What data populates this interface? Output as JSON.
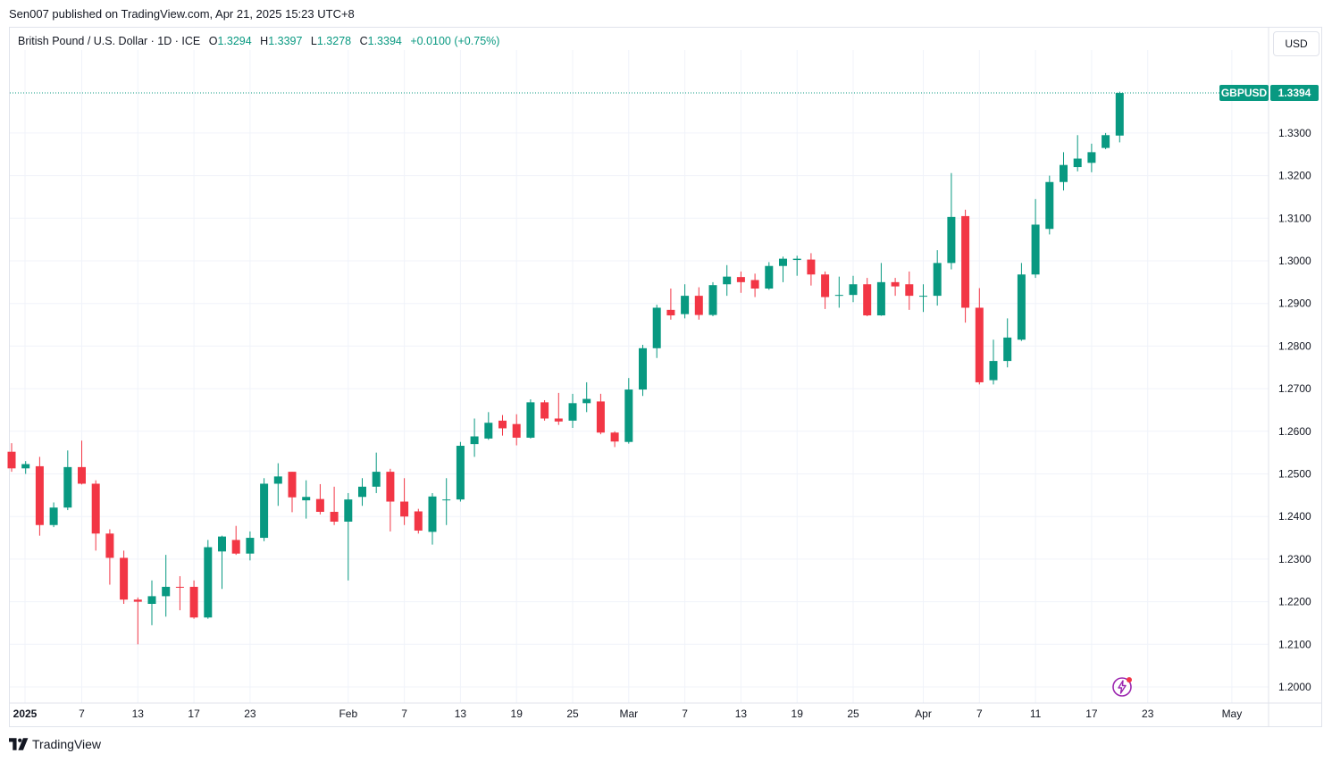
{
  "header": {
    "publisher_line": "Sen007 published on TradingView.com, Apr 21, 2025 15:23 UTC+8"
  },
  "legend": {
    "symbol": "British Pound / U.S. Dollar · 1D · ICE",
    "open_label": "O",
    "open_value": "1.3294",
    "high_label": "H",
    "high_value": "1.3397",
    "low_label": "L",
    "low_value": "1.3278",
    "close_label": "C",
    "close_value": "1.3394",
    "change": "+0.0100 (+0.75%)"
  },
  "currency_button": "USD",
  "footer": {
    "brand": "TradingView"
  },
  "colors": {
    "up": "#089981",
    "down": "#f23645",
    "grid": "#f0f3fa",
    "text": "#131722"
  },
  "chart_data": {
    "type": "candlestick",
    "ylim": [
      1.195,
      1.3445
    ],
    "y_ticks": [
      "1.2000",
      "1.2100",
      "1.2200",
      "1.2300",
      "1.2400",
      "1.2500",
      "1.2600",
      "1.2700",
      "1.2800",
      "1.2900",
      "1.3000",
      "1.3100",
      "1.3200",
      "1.3300"
    ],
    "x_ticks": [
      {
        "label": "2025",
        "date": "2025-01-01",
        "bold": true
      },
      {
        "label": "7",
        "date": "2025-01-07"
      },
      {
        "label": "13",
        "date": "2025-01-13"
      },
      {
        "label": "17",
        "date": "2025-01-17"
      },
      {
        "label": "23",
        "date": "2025-01-23"
      },
      {
        "label": "Feb",
        "date": "2025-02-01"
      },
      {
        "label": "7",
        "date": "2025-02-07"
      },
      {
        "label": "13",
        "date": "2025-02-13"
      },
      {
        "label": "19",
        "date": "2025-02-19"
      },
      {
        "label": "25",
        "date": "2025-02-25"
      },
      {
        "label": "Mar",
        "date": "2025-03-01"
      },
      {
        "label": "7",
        "date": "2025-03-07"
      },
      {
        "label": "13",
        "date": "2025-03-13"
      },
      {
        "label": "19",
        "date": "2025-03-19"
      },
      {
        "label": "25",
        "date": "2025-03-25"
      },
      {
        "label": "Apr",
        "date": "2025-04-01"
      },
      {
        "label": "7",
        "date": "2025-04-07"
      },
      {
        "label": "11",
        "date": "2025-04-11"
      },
      {
        "label": "17",
        "date": "2025-04-17"
      },
      {
        "label": "23",
        "date": "2025-04-23"
      },
      {
        "label": "May",
        "date": "2025-05-01"
      }
    ],
    "last_price_tag": {
      "symbol": "GBPUSD",
      "value": "1.3394",
      "price": 1.3394
    },
    "candles": [
      {
        "date": "2024-12-31",
        "o": 1.2552,
        "h": 1.2572,
        "l": 1.2505,
        "c": 1.2513
      },
      {
        "date": "2025-01-01",
        "o": 1.2513,
        "h": 1.253,
        "l": 1.25,
        "c": 1.2523
      },
      {
        "date": "2025-01-02",
        "o": 1.2518,
        "h": 1.254,
        "l": 1.2355,
        "c": 1.238
      },
      {
        "date": "2025-01-03",
        "o": 1.238,
        "h": 1.2433,
        "l": 1.2375,
        "c": 1.2421
      },
      {
        "date": "2025-01-06",
        "o": 1.2421,
        "h": 1.2555,
        "l": 1.2415,
        "c": 1.2516
      },
      {
        "date": "2025-01-07",
        "o": 1.2516,
        "h": 1.2578,
        "l": 1.2475,
        "c": 1.2477
      },
      {
        "date": "2025-01-08",
        "o": 1.2477,
        "h": 1.2485,
        "l": 1.232,
        "c": 1.236
      },
      {
        "date": "2025-01-09",
        "o": 1.236,
        "h": 1.237,
        "l": 1.224,
        "c": 1.2303
      },
      {
        "date": "2025-01-10",
        "o": 1.2303,
        "h": 1.232,
        "l": 1.2195,
        "c": 1.2205
      },
      {
        "date": "2025-01-13",
        "o": 1.2205,
        "h": 1.221,
        "l": 1.21,
        "c": 1.22
      },
      {
        "date": "2025-01-14",
        "o": 1.2195,
        "h": 1.225,
        "l": 1.2145,
        "c": 1.2213
      },
      {
        "date": "2025-01-15",
        "o": 1.2213,
        "h": 1.231,
        "l": 1.2165,
        "c": 1.2235
      },
      {
        "date": "2025-01-16",
        "o": 1.2235,
        "h": 1.226,
        "l": 1.218,
        "c": 1.2233
      },
      {
        "date": "2025-01-17",
        "o": 1.2235,
        "h": 1.225,
        "l": 1.216,
        "c": 1.2163
      },
      {
        "date": "2025-01-20",
        "o": 1.2163,
        "h": 1.2345,
        "l": 1.216,
        "c": 1.2328
      },
      {
        "date": "2025-01-21",
        "o": 1.2318,
        "h": 1.2355,
        "l": 1.223,
        "c": 1.2353
      },
      {
        "date": "2025-01-22",
        "o": 1.2345,
        "h": 1.2378,
        "l": 1.231,
        "c": 1.2313
      },
      {
        "date": "2025-01-23",
        "o": 1.2313,
        "h": 1.2365,
        "l": 1.2297,
        "c": 1.235
      },
      {
        "date": "2025-01-24",
        "o": 1.235,
        "h": 1.249,
        "l": 1.2342,
        "c": 1.2477
      },
      {
        "date": "2025-01-27",
        "o": 1.2477,
        "h": 1.2525,
        "l": 1.2425,
        "c": 1.2494
      },
      {
        "date": "2025-01-28",
        "o": 1.2505,
        "h": 1.2505,
        "l": 1.241,
        "c": 1.2445
      },
      {
        "date": "2025-01-29",
        "o": 1.2438,
        "h": 1.2485,
        "l": 1.2395,
        "c": 1.2446
      },
      {
        "date": "2025-01-30",
        "o": 1.2441,
        "h": 1.2476,
        "l": 1.2405,
        "c": 1.2411
      },
      {
        "date": "2025-01-31",
        "o": 1.2411,
        "h": 1.247,
        "l": 1.238,
        "c": 1.2388
      },
      {
        "date": "2025-02-03",
        "o": 1.2388,
        "h": 1.2455,
        "l": 1.225,
        "c": 1.244
      },
      {
        "date": "2025-02-04",
        "o": 1.2446,
        "h": 1.249,
        "l": 1.2425,
        "c": 1.247
      },
      {
        "date": "2025-02-05",
        "o": 1.247,
        "h": 1.255,
        "l": 1.2455,
        "c": 1.2505
      },
      {
        "date": "2025-02-06",
        "o": 1.2505,
        "h": 1.2512,
        "l": 1.2365,
        "c": 1.2435
      },
      {
        "date": "2025-02-07",
        "o": 1.2435,
        "h": 1.249,
        "l": 1.238,
        "c": 1.24
      },
      {
        "date": "2025-02-10",
        "o": 1.2412,
        "h": 1.2418,
        "l": 1.236,
        "c": 1.2367
      },
      {
        "date": "2025-02-11",
        "o": 1.2364,
        "h": 1.2455,
        "l": 1.2334,
        "c": 1.2447
      },
      {
        "date": "2025-02-12",
        "o": 1.244,
        "h": 1.249,
        "l": 1.238,
        "c": 1.244
      },
      {
        "date": "2025-02-13",
        "o": 1.244,
        "h": 1.2575,
        "l": 1.2435,
        "c": 1.2566
      },
      {
        "date": "2025-02-14",
        "o": 1.257,
        "h": 1.263,
        "l": 1.254,
        "c": 1.2588
      },
      {
        "date": "2025-02-17",
        "o": 1.2583,
        "h": 1.2645,
        "l": 1.258,
        "c": 1.262
      },
      {
        "date": "2025-02-18",
        "o": 1.2625,
        "h": 1.2638,
        "l": 1.259,
        "c": 1.2607
      },
      {
        "date": "2025-02-19",
        "o": 1.2617,
        "h": 1.264,
        "l": 1.2567,
        "c": 1.2585
      },
      {
        "date": "2025-02-20",
        "o": 1.2585,
        "h": 1.2675,
        "l": 1.2583,
        "c": 1.2668
      },
      {
        "date": "2025-02-21",
        "o": 1.2668,
        "h": 1.2673,
        "l": 1.2625,
        "c": 1.263
      },
      {
        "date": "2025-02-24",
        "o": 1.263,
        "h": 1.269,
        "l": 1.2615,
        "c": 1.2623
      },
      {
        "date": "2025-02-25",
        "o": 1.2625,
        "h": 1.2688,
        "l": 1.2608,
        "c": 1.2666
      },
      {
        "date": "2025-02-26",
        "o": 1.2666,
        "h": 1.2715,
        "l": 1.2645,
        "c": 1.2676
      },
      {
        "date": "2025-02-27",
        "o": 1.267,
        "h": 1.2688,
        "l": 1.2593,
        "c": 1.2597
      },
      {
        "date": "2025-02-28",
        "o": 1.2597,
        "h": 1.26,
        "l": 1.2563,
        "c": 1.2576
      },
      {
        "date": "2025-03-03",
        "o": 1.2575,
        "h": 1.2725,
        "l": 1.2571,
        "c": 1.2698
      },
      {
        "date": "2025-03-04",
        "o": 1.2698,
        "h": 1.2803,
        "l": 1.2683,
        "c": 1.2795
      },
      {
        "date": "2025-03-05",
        "o": 1.2795,
        "h": 1.2897,
        "l": 1.2772,
        "c": 1.289
      },
      {
        "date": "2025-03-06",
        "o": 1.2885,
        "h": 1.2935,
        "l": 1.2862,
        "c": 1.2872
      },
      {
        "date": "2025-03-07",
        "o": 1.2875,
        "h": 1.2945,
        "l": 1.2865,
        "c": 1.2918
      },
      {
        "date": "2025-03-10",
        "o": 1.2918,
        "h": 1.2938,
        "l": 1.2862,
        "c": 1.2873
      },
      {
        "date": "2025-03-11",
        "o": 1.2873,
        "h": 1.295,
        "l": 1.287,
        "c": 1.2943
      },
      {
        "date": "2025-03-12",
        "o": 1.2945,
        "h": 1.299,
        "l": 1.2918,
        "c": 1.2963
      },
      {
        "date": "2025-03-13",
        "o": 1.2962,
        "h": 1.2975,
        "l": 1.2925,
        "c": 1.295
      },
      {
        "date": "2025-03-14",
        "o": 1.2955,
        "h": 1.297,
        "l": 1.2915,
        "c": 1.2935
      },
      {
        "date": "2025-03-17",
        "o": 1.2935,
        "h": 1.2997,
        "l": 1.2932,
        "c": 1.2988
      },
      {
        "date": "2025-03-18",
        "o": 1.2988,
        "h": 1.301,
        "l": 1.295,
        "c": 1.3005
      },
      {
        "date": "2025-03-19",
        "o": 1.3002,
        "h": 1.3012,
        "l": 1.2965,
        "c": 1.3005
      },
      {
        "date": "2025-03-20",
        "o": 1.3003,
        "h": 1.3018,
        "l": 1.2942,
        "c": 1.2968
      },
      {
        "date": "2025-03-21",
        "o": 1.2968,
        "h": 1.2975,
        "l": 1.2887,
        "c": 1.2915
      },
      {
        "date": "2025-03-24",
        "o": 1.292,
        "h": 1.2963,
        "l": 1.289,
        "c": 1.292
      },
      {
        "date": "2025-03-25",
        "o": 1.292,
        "h": 1.2965,
        "l": 1.2903,
        "c": 1.2945
      },
      {
        "date": "2025-03-26",
        "o": 1.2945,
        "h": 1.296,
        "l": 1.287,
        "c": 1.2872
      },
      {
        "date": "2025-03-27",
        "o": 1.2872,
        "h": 1.2995,
        "l": 1.2871,
        "c": 1.295
      },
      {
        "date": "2025-03-28",
        "o": 1.295,
        "h": 1.296,
        "l": 1.2918,
        "c": 1.294
      },
      {
        "date": "2025-03-31",
        "o": 1.2945,
        "h": 1.2975,
        "l": 1.2885,
        "c": 1.2918
      },
      {
        "date": "2025-04-01",
        "o": 1.2918,
        "h": 1.2945,
        "l": 1.288,
        "c": 1.2918
      },
      {
        "date": "2025-04-02",
        "o": 1.2918,
        "h": 1.3025,
        "l": 1.2895,
        "c": 1.2995
      },
      {
        "date": "2025-04-03",
        "o": 1.2995,
        "h": 1.3206,
        "l": 1.298,
        "c": 1.3103
      },
      {
        "date": "2025-04-04",
        "o": 1.3105,
        "h": 1.312,
        "l": 1.2855,
        "c": 1.289
      },
      {
        "date": "2025-04-07",
        "o": 1.289,
        "h": 1.2936,
        "l": 1.271,
        "c": 1.2715
      },
      {
        "date": "2025-04-08",
        "o": 1.272,
        "h": 1.2815,
        "l": 1.271,
        "c": 1.2765
      },
      {
        "date": "2025-04-09",
        "o": 1.2765,
        "h": 1.2865,
        "l": 1.275,
        "c": 1.282
      },
      {
        "date": "2025-04-10",
        "o": 1.2815,
        "h": 1.2995,
        "l": 1.2812,
        "c": 1.2968
      },
      {
        "date": "2025-04-11",
        "o": 1.2968,
        "h": 1.3145,
        "l": 1.296,
        "c": 1.3085
      },
      {
        "date": "2025-04-14",
        "o": 1.3075,
        "h": 1.32,
        "l": 1.3062,
        "c": 1.3185
      },
      {
        "date": "2025-04-15",
        "o": 1.3185,
        "h": 1.3255,
        "l": 1.3165,
        "c": 1.3225
      },
      {
        "date": "2025-04-16",
        "o": 1.322,
        "h": 1.3295,
        "l": 1.321,
        "c": 1.324
      },
      {
        "date": "2025-04-17",
        "o": 1.323,
        "h": 1.3275,
        "l": 1.3208,
        "c": 1.3255
      },
      {
        "date": "2025-04-18",
        "o": 1.3265,
        "h": 1.33,
        "l": 1.3262,
        "c": 1.3295
      },
      {
        "date": "2025-04-21",
        "o": 1.3294,
        "h": 1.3397,
        "l": 1.3278,
        "c": 1.3394
      }
    ]
  }
}
